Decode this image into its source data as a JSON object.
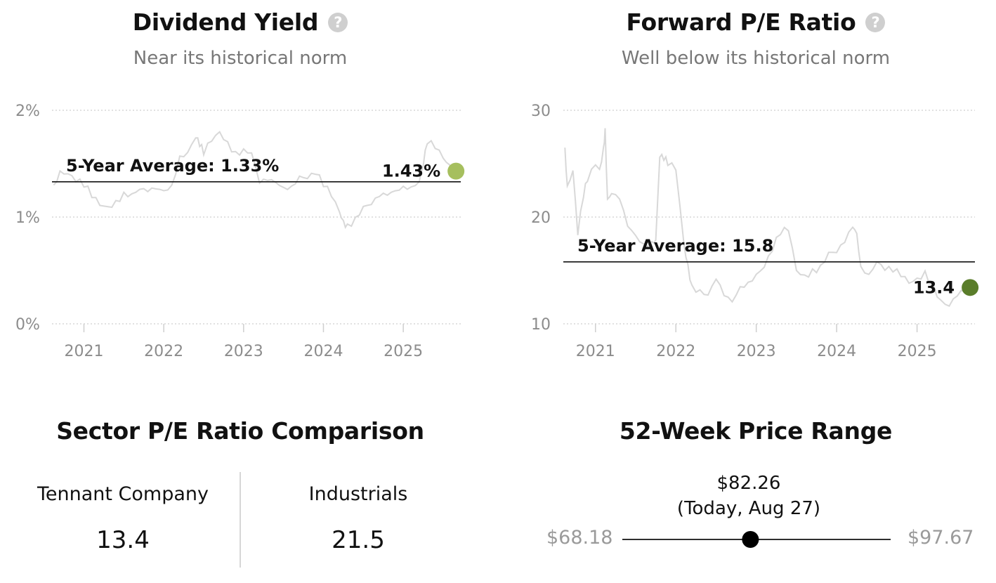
{
  "dividend": {
    "title": "Dividend Yield",
    "subtitle": "Near its historical norm",
    "help_icon": "question-circle-icon"
  },
  "pe": {
    "title": "Forward P/E Ratio",
    "subtitle": "Well below its historical norm",
    "help_icon": "question-circle-icon"
  },
  "sector": {
    "title": "Sector P/E Ratio Comparison",
    "items": [
      {
        "name": "Tennant Company",
        "value": "13.4"
      },
      {
        "name": "Industrials",
        "value": "21.5"
      }
    ]
  },
  "range52": {
    "title": "52-Week Price Range",
    "low": "$68.18",
    "high": "$97.67",
    "current": "$82.26",
    "current_note": "(Today, Aug 27)",
    "current_value": 82.26,
    "low_value": 68.18,
    "high_value": 97.67
  },
  "chart_data": [
    {
      "type": "line",
      "title": "Dividend Yield",
      "yticks": [
        "0%",
        "1%",
        "2%"
      ],
      "ylim": [
        0,
        2
      ],
      "xticks": [
        "2021",
        "2022",
        "2023",
        "2024",
        "2025"
      ],
      "xlim": [
        2020.6,
        2025.72
      ],
      "grid": true,
      "average": {
        "label": "5-Year Average: 1.33%",
        "value": 1.33
      },
      "current": {
        "label": "1.43%",
        "x": 2025.66,
        "y": 1.43,
        "color": "#a6bf5e"
      },
      "series": [
        {
          "x": [
            2020.62,
            2020.7,
            2020.8,
            2020.9,
            2021.0,
            2021.1,
            2021.2,
            2021.3,
            2021.4,
            2021.5,
            2021.6,
            2021.7,
            2021.8,
            2021.9,
            2022.0,
            2022.1,
            2022.2,
            2022.3,
            2022.4,
            2022.45,
            2022.5,
            2022.6,
            2022.7,
            2022.8,
            2022.9,
            2023.0,
            2023.1,
            2023.2,
            2023.3,
            2023.4,
            2023.5,
            2023.6,
            2023.7,
            2023.8,
            2023.9,
            2024.0,
            2024.1,
            2024.2,
            2024.25,
            2024.3,
            2024.4,
            2024.5,
            2024.6,
            2024.7,
            2024.8,
            2024.9,
            2025.0,
            2025.1,
            2025.2,
            2025.25,
            2025.3,
            2025.4,
            2025.5,
            2025.58,
            2025.66
          ],
          "y": [
            1.3,
            1.44,
            1.42,
            1.35,
            1.3,
            1.2,
            1.12,
            1.1,
            1.15,
            1.22,
            1.2,
            1.24,
            1.22,
            1.25,
            1.24,
            1.3,
            1.58,
            1.62,
            1.76,
            1.68,
            1.6,
            1.72,
            1.8,
            1.7,
            1.6,
            1.62,
            1.58,
            1.3,
            1.33,
            1.32,
            1.28,
            1.3,
            1.4,
            1.38,
            1.42,
            1.3,
            1.2,
            1.05,
            0.96,
            0.92,
            0.98,
            1.08,
            1.1,
            1.18,
            1.2,
            1.25,
            1.3,
            1.3,
            1.35,
            1.5,
            1.7,
            1.65,
            1.55,
            1.48,
            1.43
          ]
        }
      ]
    },
    {
      "type": "line",
      "title": "Forward P/E Ratio",
      "yticks": [
        "10",
        "20",
        "30"
      ],
      "ylim": [
        10,
        30
      ],
      "xticks": [
        "2021",
        "2022",
        "2023",
        "2024",
        "2025"
      ],
      "xlim": [
        2020.6,
        2025.72
      ],
      "grid": true,
      "average": {
        "label": "5-Year Average: 15.8",
        "value": 15.8
      },
      "current": {
        "label": "13.4",
        "x": 2025.66,
        "y": 13.4,
        "color": "#5a7d2a"
      },
      "series": [
        {
          "x": [
            2020.62,
            2020.65,
            2020.72,
            2020.78,
            2020.85,
            2020.9,
            2021.0,
            2021.05,
            2021.1,
            2021.12,
            2021.15,
            2021.2,
            2021.3,
            2021.4,
            2021.5,
            2021.6,
            2021.7,
            2021.75,
            2021.8,
            2021.85,
            2021.9,
            2022.0,
            2022.1,
            2022.15,
            2022.2,
            2022.3,
            2022.4,
            2022.5,
            2022.6,
            2022.7,
            2022.8,
            2022.9,
            2023.0,
            2023.1,
            2023.2,
            2023.3,
            2023.4,
            2023.5,
            2023.6,
            2023.7,
            2023.8,
            2023.9,
            2024.0,
            2024.1,
            2024.2,
            2024.25,
            2024.3,
            2024.4,
            2024.5,
            2024.6,
            2024.7,
            2024.8,
            2024.9,
            2025.0,
            2025.1,
            2025.2,
            2025.3,
            2025.4,
            2025.5,
            2025.6,
            2025.66
          ],
          "y": [
            26.5,
            23.0,
            24.5,
            18.5,
            22.0,
            23.5,
            25.0,
            24.5,
            26.5,
            28.2,
            21.5,
            22.0,
            21.5,
            19.0,
            18.2,
            17.5,
            17.8,
            18.0,
            25.8,
            25.5,
            25.0,
            24.5,
            17.5,
            15.5,
            13.5,
            13.0,
            12.5,
            14.0,
            12.5,
            12.0,
            13.5,
            14.0,
            14.8,
            15.5,
            17.0,
            18.5,
            18.8,
            15.0,
            14.5,
            15.0,
            15.3,
            16.5,
            16.5,
            17.5,
            19.0,
            18.5,
            15.5,
            14.8,
            16.0,
            15.2,
            15.0,
            14.5,
            13.8,
            14.2,
            14.8,
            13.5,
            12.0,
            11.5,
            12.5,
            13.0,
            13.4
          ]
        }
      ]
    }
  ]
}
